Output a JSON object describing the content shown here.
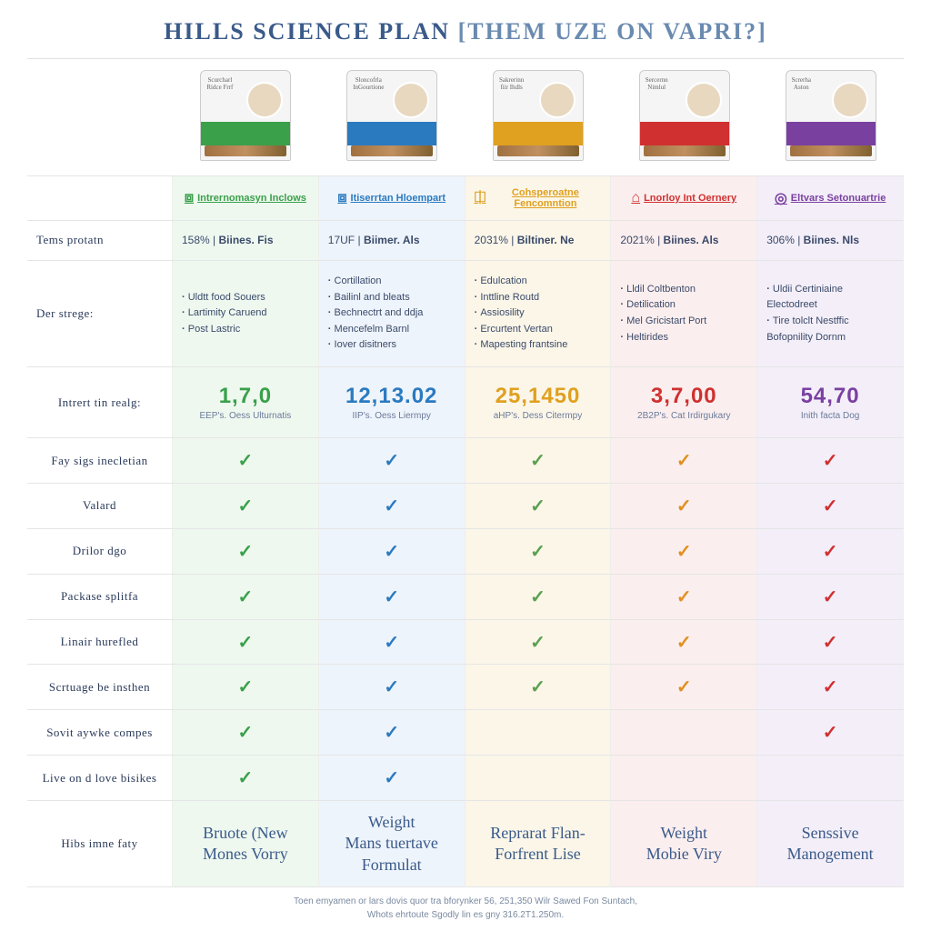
{
  "title_main": "HILLS SCIENCE PLAN",
  "title_sub": "[THEM UZE ON VAPRI?]",
  "row_labels": {
    "r_protein": "Tems protatn",
    "r_details": "Der strege:",
    "r_price": "Intrert tin realg:",
    "r_f1": "Fay sigs inecletian",
    "r_f2": "Valard",
    "r_f3": "Drilor dgo",
    "r_f4": "Packase splitfa",
    "r_f5": "Linair hurefled",
    "r_f6": "Scrtuage be insthen",
    "r_f7": "Sovit aywke compes",
    "r_f8": "Live on d love bisikes",
    "r_footer": "Hibs imne faty"
  },
  "columns": [
    {
      "accent": "#3aa04a",
      "tint": "#eef8ef",
      "check_color": "#3aa04a",
      "bag_stripe": "#3aa04a",
      "bag_label": "Scurcharl\nRidce Frrf",
      "tagline_icon": "⧈",
      "tagline": "Intrernomasyn Inclows",
      "stat": "158% | Biines. Fis",
      "bullets": [
        "Uldtt food Souers",
        "Lartimity Caruend",
        "Post Lastric"
      ],
      "price": "1,7,0",
      "price_sub": "EEP's. Oess Ulturnatis",
      "checks": [
        true,
        true,
        true,
        true,
        true,
        true,
        true,
        true
      ],
      "footer": "Bruote (New\nMones Vorry"
    },
    {
      "accent": "#2a7ac0",
      "tint": "#eef4fb",
      "check_color": "#2a7ac0",
      "bag_stripe": "#2a7ac0",
      "bag_label": "Sloncofrla\nInGourtione",
      "tagline_icon": "⧈",
      "tagline": "Itiserrtan Hloempart",
      "stat": "17UF | Biimer. Als",
      "bullets": [
        "Cortillation",
        "Bailinl and bleats",
        "Bechnectrt and ddja",
        "Mencefelm Barnl",
        "Iover disitners"
      ],
      "price": "12,13.02",
      "price_sub": "IIP's. Oess Liermpy",
      "checks": [
        true,
        true,
        true,
        true,
        true,
        true,
        true,
        true
      ],
      "footer": "Weight\nMans tuertave\nFormulat"
    },
    {
      "accent": "#e0a020",
      "tint": "#fbf6e8",
      "check_color": "#5aa050",
      "bag_stripe": "#e0a020",
      "bag_label": "Sakrerinn\nfiir Ihdls",
      "tagline_icon": "⎅",
      "tagline": "Cohsperoatne Fencomntion",
      "stat": "2031% | Biltiner. Ne",
      "bullets": [
        "Edulcation",
        "Inttline Routd",
        "Assiosility",
        "Ercurtent Vertan",
        "Mapesting frantsine"
      ],
      "price": "25,1450",
      "price_sub": "aHP's. Dess Citermpy",
      "checks": [
        true,
        true,
        true,
        true,
        true,
        true,
        false,
        false
      ],
      "footer": "Reprarat Flan-\nForfrent Lise"
    },
    {
      "accent": "#d03030",
      "tint": "#fbeeee",
      "check_color": "#e09020",
      "bag_stripe": "#d03030",
      "bag_label": "Sercernn\nNimlul",
      "tagline_icon": "⌂",
      "tagline": "Lnorloy Int Oernery",
      "stat": "2021% | Biines. Als",
      "bullets": [
        "Lldil Coltbenton",
        "Detilication",
        "Mel Gricistart Port",
        "Heltirides"
      ],
      "price": "3,7,00",
      "price_sub": "2B2P's. Cat Irdirgukary",
      "checks": [
        true,
        true,
        true,
        true,
        true,
        true,
        false,
        false
      ],
      "footer": "Weight\nMobie Viry"
    },
    {
      "accent": "#7a40a0",
      "tint": "#f3eef8",
      "check_color": "#d03030",
      "bag_stripe": "#7a40a0",
      "bag_label": "Screrha\nAston",
      "tagline_icon": "◎",
      "tagline": "Eltvars Setonuartrie",
      "stat": "306% | Biines. Nls",
      "bullets": [
        "Uldii Certiniaine Electodreet",
        "Tire tolclt Nestffic Bofopnility Dornm"
      ],
      "price": "54,70",
      "price_sub": "Inith facta Dog",
      "checks": [
        true,
        true,
        true,
        true,
        true,
        true,
        true,
        false
      ],
      "footer": "Senssive\nManogement"
    }
  ],
  "footnote1": "Toen emyamen or lars dovis quor tra bforynker 56, 251,350 Wilr Sawed Fon Suntach,",
  "footnote2": "Whots ehrtoute Sgodly lin es gny 316.2T1.250m."
}
